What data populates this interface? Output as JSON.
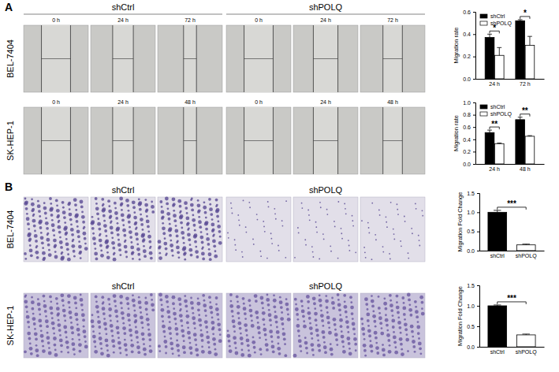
{
  "chart_data": [
    {
      "type": "bar",
      "ylabel": "Migration rate",
      "categories": [
        "24 h",
        "72 h"
      ],
      "series": [
        {
          "name": "shCtrl",
          "color": "#000000",
          "values": [
            0.37,
            0.52
          ],
          "errors": [
            0.03,
            0.01
          ]
        },
        {
          "name": "shPOLQ",
          "color": "#ffffff",
          "values": [
            0.21,
            0.3
          ],
          "errors": [
            0.07,
            0.08
          ]
        }
      ],
      "ylim": [
        0,
        0.6
      ],
      "yticks": [
        {
          "value": 0,
          "label": "0.0"
        },
        0.2,
        0.4,
        0.6
      ],
      "legend": "upper left",
      "annotations": [
        {
          "text": "*",
          "category": "24 h"
        },
        {
          "text": "*",
          "category": "72 h"
        }
      ]
    },
    {
      "type": "bar",
      "ylabel": "Migration rate",
      "categories": [
        "24 h",
        "48 h"
      ],
      "series": [
        {
          "name": "shCtrl",
          "color": "#000000",
          "values": [
            0.51,
            0.72
          ],
          "errors": [
            0.04,
            0.04
          ]
        },
        {
          "name": "shPOLQ",
          "color": "#ffffff",
          "values": [
            0.33,
            0.45
          ],
          "errors": [
            0.01,
            0.01
          ]
        }
      ],
      "ylim": [
        0,
        1
      ],
      "yticks": [
        {
          "value": 0,
          "label": "0.0"
        },
        0.2,
        0.4,
        0.6,
        0.8,
        {
          "value": 1,
          "label": "1.0"
        }
      ],
      "legend": "upper left",
      "annotations": [
        {
          "text": "**",
          "category": "24 h"
        },
        {
          "text": "**",
          "category": "48 h"
        }
      ]
    },
    {
      "type": "bar",
      "ylabel": "Migration Fold Change",
      "categories": [
        "shCtrl",
        "shPOLQ"
      ],
      "values": [
        1.0,
        0.15
      ],
      "errors": [
        0.05,
        0.02
      ],
      "colors": [
        "#000000",
        "#ffffff"
      ],
      "ylim": [
        0,
        1.5
      ],
      "yticks": [
        {
          "value": 0,
          "label": "0.0"
        },
        0.5,
        {
          "value": 1,
          "label": "1.0"
        },
        1.5
      ],
      "annotations": [
        {
          "text": "***"
        }
      ]
    },
    {
      "type": "bar",
      "ylabel": "Migration Fold Change",
      "categories": [
        "shCtrl",
        "shPOLQ"
      ],
      "values": [
        1.0,
        0.29
      ],
      "errors": [
        0.02,
        0.02
      ],
      "colors": [
        "#000000",
        "#ffffff"
      ],
      "ylim": [
        0,
        1.5
      ],
      "yticks": [
        {
          "value": 0,
          "label": "0.0"
        },
        0.5,
        {
          "value": 1,
          "label": "1.0"
        },
        1.5
      ],
      "annotations": [
        {
          "text": "***"
        }
      ]
    }
  ],
  "figure": {
    "panels": [
      {
        "label": "A",
        "group_labels": [
          "shCtrl",
          "shPOLQ"
        ],
        "rows": [
          {
            "label": "BEL-7404",
            "timepoints": [
              "0 h",
              "24 h",
              "72 h"
            ]
          },
          {
            "label": "SK-HEP-1",
            "timepoints": [
              "0 h",
              "24 h",
              "48 h"
            ]
          }
        ]
      },
      {
        "label": "B",
        "rows": [
          {
            "label": "BEL-7404",
            "group_labels": [
              "shCtrl",
              "shPOLQ"
            ]
          },
          {
            "label": "SK-HEP-1",
            "group_labels": [
              "shCtrl",
              "shPOLQ"
            ]
          }
        ]
      }
    ]
  }
}
